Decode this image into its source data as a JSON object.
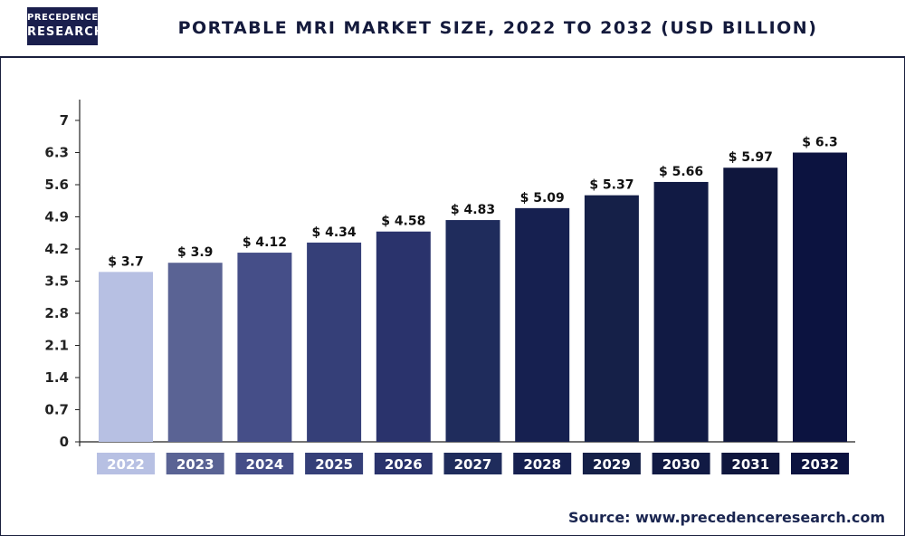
{
  "header": {
    "logo_line1": "PRECEDENCE",
    "logo_line2": "RESEARCH",
    "title": "PORTABLE MRI MARKET SIZE, 2022 TO 2032 (USD BILLION)"
  },
  "source": "Source: www.precedenceresearch.com",
  "chart_data": {
    "type": "bar",
    "title": "PORTABLE MRI MARKET SIZE, 2022 TO 2032 (USD BILLION)",
    "xlabel": "",
    "ylabel": "",
    "categories": [
      "2022",
      "2023",
      "2024",
      "2025",
      "2026",
      "2027",
      "2028",
      "2029",
      "2030",
      "2031",
      "2032"
    ],
    "values": [
      3.7,
      3.9,
      4.12,
      4.34,
      4.58,
      4.83,
      5.09,
      5.37,
      5.66,
      5.97,
      6.3
    ],
    "value_labels": [
      "$ 3.7",
      "$ 3.9",
      "$ 4.12",
      "$ 4.34",
      "$ 4.58",
      "$ 4.83",
      "$ 5.09",
      "$ 5.37",
      "$ 5.66",
      "$ 5.97",
      "$ 6.3"
    ],
    "yticks": [
      "0",
      "0.7",
      "1.4",
      "2.1",
      "2.8",
      "3.5",
      "4.2",
      "4.9",
      "5.6",
      "6.3",
      "7"
    ],
    "ylim": [
      0,
      7
    ],
    "grid": false,
    "legend": "none",
    "colors": [
      "#b7c0e3",
      "#5a6394",
      "#454e88",
      "#353f78",
      "#2a336c",
      "#1f2c5c",
      "#162050",
      "#152048",
      "#111a44",
      "#0f163d",
      "#0c1340"
    ]
  }
}
